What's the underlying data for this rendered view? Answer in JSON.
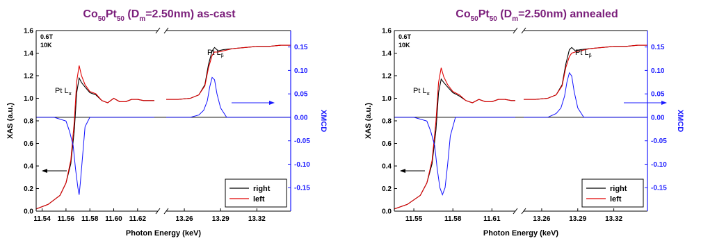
{
  "chart_data": [
    {
      "type": "line",
      "title_parts": [
        "Co",
        "50",
        "Pt",
        "50",
        " (D",
        "m",
        "=2.50nm) as-cast"
      ],
      "xlabel": "Photon Energy (keV)",
      "ylabel_left": "XAS (a.u.)",
      "ylabel_right": "XMCD",
      "field": "0.6T",
      "temperature": "10K",
      "edge_L3": "Pt L",
      "edge_L3_sub": "α",
      "edge_L2": "Pt L",
      "edge_L2_sub": "β",
      "left_segment": {
        "xlim": [
          11.535,
          11.637
        ],
        "ticks": [
          "11.54",
          "11.56",
          "11.58",
          "11.60",
          "11.62"
        ],
        "tick_values": [
          11.54,
          11.56,
          11.58,
          11.6,
          11.62
        ]
      },
      "right_segment": {
        "xlim": [
          13.245,
          13.348
        ],
        "ticks": [
          "13.26",
          "13.29",
          "13.32"
        ],
        "tick_values": [
          13.26,
          13.29,
          13.32
        ]
      },
      "y_left": {
        "ylim": [
          0.0,
          1.6
        ],
        "ticks": [
          "0.0",
          "0.2",
          "0.4",
          "0.6",
          "0.8",
          "1.0",
          "1.2",
          "1.4",
          "1.6"
        ]
      },
      "y_right": {
        "ylim": [
          -0.2,
          0.185
        ],
        "ticks": [
          "-0.15",
          "-0.10",
          "-0.05",
          "0.00",
          "0.05",
          "0.10",
          "0.15"
        ],
        "tick_values": [
          -0.15,
          -0.1,
          -0.05,
          0.0,
          0.05,
          0.1,
          0.15
        ]
      },
      "series": [
        {
          "name": "right",
          "color": "#000000",
          "segment_left": {
            "x": [
              11.535,
              11.545,
              11.555,
              11.56,
              11.564,
              11.567,
              11.569,
              11.571,
              11.573,
              11.576,
              11.58,
              11.585,
              11.59,
              11.595,
              11.6,
              11.605,
              11.61,
              11.615,
              11.62,
              11.625,
              11.63,
              11.634
            ],
            "y": [
              0.02,
              0.06,
              0.14,
              0.25,
              0.42,
              0.72,
              1.05,
              1.18,
              1.14,
              1.1,
              1.05,
              1.03,
              0.98,
              0.96,
              1.0,
              0.97,
              0.97,
              0.99,
              0.99,
              0.98,
              0.98,
              0.98
            ]
          },
          "segment_right": {
            "x": [
              13.245,
              13.255,
              13.265,
              13.272,
              13.277,
              13.28,
              13.283,
              13.285,
              13.288,
              13.292,
              13.3,
              13.31,
              13.32,
              13.33,
              13.34,
              13.348
            ],
            "y": [
              0.99,
              0.99,
              1.0,
              1.03,
              1.12,
              1.3,
              1.42,
              1.45,
              1.42,
              1.43,
              1.44,
              1.45,
              1.46,
              1.46,
              1.47,
              1.47
            ]
          }
        },
        {
          "name": "left",
          "color": "#e00000",
          "segment_left": {
            "x": [
              11.535,
              11.545,
              11.555,
              11.56,
              11.564,
              11.567,
              11.569,
              11.571,
              11.573,
              11.576,
              11.58,
              11.585,
              11.59,
              11.595,
              11.6,
              11.605,
              11.61,
              11.615,
              11.62,
              11.625,
              11.63,
              11.634
            ],
            "y": [
              0.02,
              0.06,
              0.14,
              0.25,
              0.45,
              0.8,
              1.15,
              1.29,
              1.2,
              1.12,
              1.06,
              1.04,
              0.98,
              0.96,
              1.0,
              0.97,
              0.97,
              0.99,
              0.99,
              0.98,
              0.98,
              0.98
            ]
          },
          "segment_right": {
            "x": [
              13.245,
              13.255,
              13.265,
              13.272,
              13.277,
              13.28,
              13.283,
              13.285,
              13.288,
              13.292,
              13.3,
              13.31,
              13.32,
              13.33,
              13.34,
              13.348
            ],
            "y": [
              0.99,
              0.99,
              1.0,
              1.03,
              1.11,
              1.27,
              1.38,
              1.41,
              1.41,
              1.42,
              1.44,
              1.45,
              1.46,
              1.46,
              1.47,
              1.47
            ]
          }
        },
        {
          "name": "XMCD",
          "color": "#1010ff",
          "segment_left": {
            "x": [
              11.535,
              11.55,
              11.56,
              11.563,
              11.566,
              11.568,
              11.57,
              11.571,
              11.572,
              11.574,
              11.576,
              11.58,
              11.59,
              11.6,
              11.634
            ],
            "y": [
              0.0,
              0.0,
              -0.008,
              -0.03,
              -0.06,
              -0.11,
              -0.15,
              -0.165,
              -0.14,
              -0.08,
              -0.02,
              0.0,
              0.0,
              0.0,
              0.0
            ]
          },
          "segment_right": {
            "x": [
              13.245,
              13.265,
              13.272,
              13.276,
              13.279,
              13.281,
              13.283,
              13.285,
              13.287,
              13.29,
              13.295,
              13.348
            ],
            "y": [
              0.0,
              0.0,
              0.005,
              0.015,
              0.035,
              0.065,
              0.085,
              0.08,
              0.05,
              0.02,
              0.0,
              0.0
            ]
          }
        }
      ],
      "legend": [
        "right",
        "left"
      ],
      "legend_position": "bottom-right"
    },
    {
      "type": "line",
      "title_parts": [
        "Co",
        "50",
        "Pt",
        "50",
        " (D",
        "m",
        "=2.50nm) annealed"
      ],
      "xlabel": "Photon Energy (keV)",
      "ylabel_left": "XAS (a.u.)",
      "ylabel_right": "XMCD",
      "field": "0.6T",
      "temperature": "10K",
      "edge_L3": "Pt L",
      "edge_L3_sub": "α",
      "edge_L2": "Pt L",
      "edge_L2_sub": "β",
      "left_segment": {
        "xlim": [
          11.535,
          11.628
        ],
        "ticks": [
          "11.55",
          "11.58",
          "11.61"
        ],
        "tick_values": [
          11.55,
          11.58,
          11.61
        ]
      },
      "right_segment": {
        "xlim": [
          13.245,
          13.348
        ],
        "ticks": [
          "13.26",
          "13.29",
          "13.32"
        ],
        "tick_values": [
          13.26,
          13.29,
          13.32
        ]
      },
      "y_left": {
        "ylim": [
          0.0,
          1.6
        ],
        "ticks": [
          "0.0",
          "0.2",
          "0.4",
          "0.6",
          "0.8",
          "1.0",
          "1.2",
          "1.4",
          "1.6"
        ]
      },
      "y_right": {
        "ylim": [
          -0.2,
          0.185
        ],
        "ticks": [
          "-0.15",
          "-0.10",
          "-0.05",
          "0.00",
          "0.05",
          "0.10",
          "0.15"
        ],
        "tick_values": [
          -0.15,
          -0.1,
          -0.05,
          0.0,
          0.05,
          0.1,
          0.15
        ]
      },
      "series": [
        {
          "name": "right",
          "color": "#000000",
          "segment_left": {
            "x": [
              11.535,
              11.545,
              11.555,
              11.56,
              11.564,
              11.567,
              11.569,
              11.571,
              11.573,
              11.576,
              11.58,
              11.585,
              11.59,
              11.595,
              11.6,
              11.605,
              11.61,
              11.615,
              11.62,
              11.625,
              11.628
            ],
            "y": [
              0.02,
              0.06,
              0.14,
              0.25,
              0.42,
              0.72,
              1.05,
              1.17,
              1.14,
              1.1,
              1.05,
              1.02,
              0.98,
              0.96,
              0.99,
              0.97,
              0.97,
              0.99,
              0.99,
              0.98,
              0.98
            ]
          },
          "segment_right": {
            "x": [
              13.245,
              13.255,
              13.265,
              13.272,
              13.277,
              13.28,
              13.283,
              13.285,
              13.288,
              13.292,
              13.3,
              13.31,
              13.32,
              13.33,
              13.34,
              13.348
            ],
            "y": [
              0.99,
              0.99,
              1.0,
              1.03,
              1.12,
              1.3,
              1.43,
              1.45,
              1.42,
              1.43,
              1.44,
              1.45,
              1.46,
              1.46,
              1.47,
              1.47
            ]
          }
        },
        {
          "name": "left",
          "color": "#e00000",
          "segment_left": {
            "x": [
              11.535,
              11.545,
              11.555,
              11.56,
              11.564,
              11.567,
              11.569,
              11.571,
              11.573,
              11.576,
              11.58,
              11.585,
              11.59,
              11.595,
              11.6,
              11.605,
              11.61,
              11.615,
              11.62,
              11.625,
              11.628
            ],
            "y": [
              0.02,
              0.06,
              0.14,
              0.25,
              0.45,
              0.8,
              1.14,
              1.27,
              1.19,
              1.12,
              1.06,
              1.03,
              0.98,
              0.96,
              0.99,
              0.97,
              0.97,
              0.99,
              0.99,
              0.98,
              0.98
            ]
          },
          "segment_right": {
            "x": [
              13.245,
              13.255,
              13.265,
              13.272,
              13.277,
              13.28,
              13.283,
              13.285,
              13.288,
              13.292,
              13.3,
              13.31,
              13.32,
              13.33,
              13.34,
              13.348
            ],
            "y": [
              0.99,
              0.99,
              1.0,
              1.03,
              1.11,
              1.27,
              1.37,
              1.4,
              1.41,
              1.42,
              1.44,
              1.45,
              1.46,
              1.46,
              1.47,
              1.47
            ]
          }
        },
        {
          "name": "XMCD",
          "color": "#1010ff",
          "segment_left": {
            "x": [
              11.535,
              11.55,
              11.56,
              11.563,
              11.566,
              11.568,
              11.57,
              11.572,
              11.574,
              11.576,
              11.578,
              11.582,
              11.59,
              11.628
            ],
            "y": [
              0.0,
              0.0,
              -0.008,
              -0.03,
              -0.06,
              -0.11,
              -0.15,
              -0.165,
              -0.15,
              -0.1,
              -0.04,
              0.0,
              0.0,
              0.0
            ]
          },
          "segment_right": {
            "x": [
              13.245,
              13.265,
              13.272,
              13.276,
              13.279,
              13.281,
              13.283,
              13.285,
              13.287,
              13.29,
              13.295,
              13.348
            ],
            "y": [
              0.0,
              0.0,
              0.008,
              0.02,
              0.045,
              0.075,
              0.095,
              0.088,
              0.055,
              0.02,
              0.0,
              0.0
            ]
          }
        }
      ],
      "legend": [
        "right",
        "left"
      ],
      "legend_position": "bottom-right"
    }
  ]
}
